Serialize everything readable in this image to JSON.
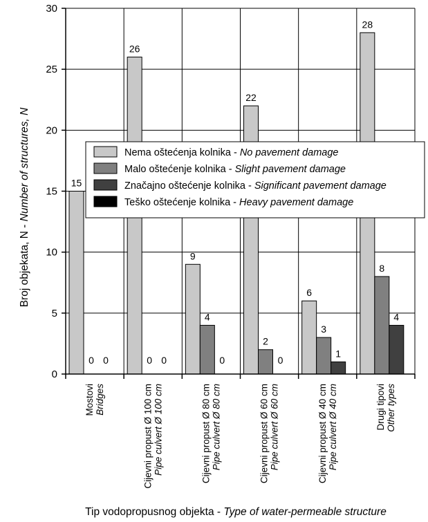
{
  "chart_data": {
    "type": "bar",
    "title": "",
    "xlabel": {
      "main": "Tip vodopropusnog objekta - ",
      "italic": "Type of water-permeable structure"
    },
    "ylabel": {
      "main": "Broj objekata, N - ",
      "italic": "Number of structures, N"
    },
    "ylim": [
      0,
      30
    ],
    "yticks": [
      0,
      5,
      10,
      15,
      20,
      25,
      30
    ],
    "grid": true,
    "legend_placement": "center-right",
    "categories": [
      {
        "line1": "Mostovi",
        "line2": "Bridges"
      },
      {
        "line1": "Cijevni propust Ø 100 cm",
        "line2": "Pipe culvert Ø 100 cm"
      },
      {
        "line1": "Cijevni propust Ø 80 cm",
        "line2": "Pipe culvert Ø 80 cm"
      },
      {
        "line1": "Cijevni propust Ø 60 cm",
        "line2": "Pipe culvert Ø 60 cm"
      },
      {
        "line1": "Cijevni propust Ø 40 cm",
        "line2": "Pipe culvert Ø 40 cm"
      },
      {
        "line1": "Drugi tipovi",
        "line2": "Other types"
      }
    ],
    "series": [
      {
        "name": "Nema oštećenja kolnika - ",
        "name_italic": "No pavement damage",
        "color": "#c8c8c8",
        "values": [
          15,
          26,
          9,
          22,
          6,
          28
        ]
      },
      {
        "name": "Malo oštećenje kolnika - ",
        "name_italic": "Slight pavement damage",
        "color": "#808080",
        "values": [
          0,
          0,
          4,
          2,
          3,
          8
        ]
      },
      {
        "name": "Značajno oštećenje kolnika - ",
        "name_italic": "Significant pavement damage",
        "color": "#404040",
        "values": [
          0,
          0,
          0,
          0,
          1,
          4
        ]
      },
      {
        "name": "Teško oštećenje kolnika - ",
        "name_italic": "Heavy pavement damage",
        "color": "#000000",
        "values": [
          0,
          0,
          0,
          0,
          0,
          0
        ]
      }
    ]
  }
}
